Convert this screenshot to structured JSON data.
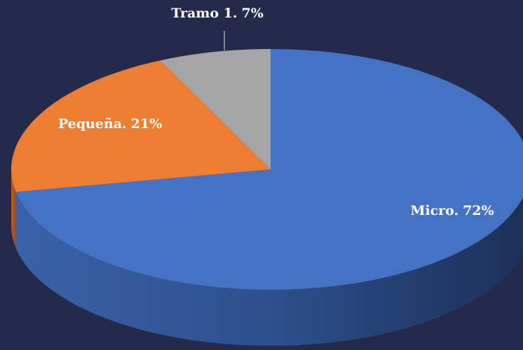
{
  "chart_data": {
    "type": "pie",
    "categories": [
      "Micro.",
      "Pequeña.",
      "Tramo 1."
    ],
    "values": [
      72,
      21,
      7
    ],
    "value_labels": [
      "72%",
      "21%",
      "7%"
    ],
    "colors": [
      "#4472c4",
      "#ed7d31",
      "#a5a5a5"
    ]
  }
}
